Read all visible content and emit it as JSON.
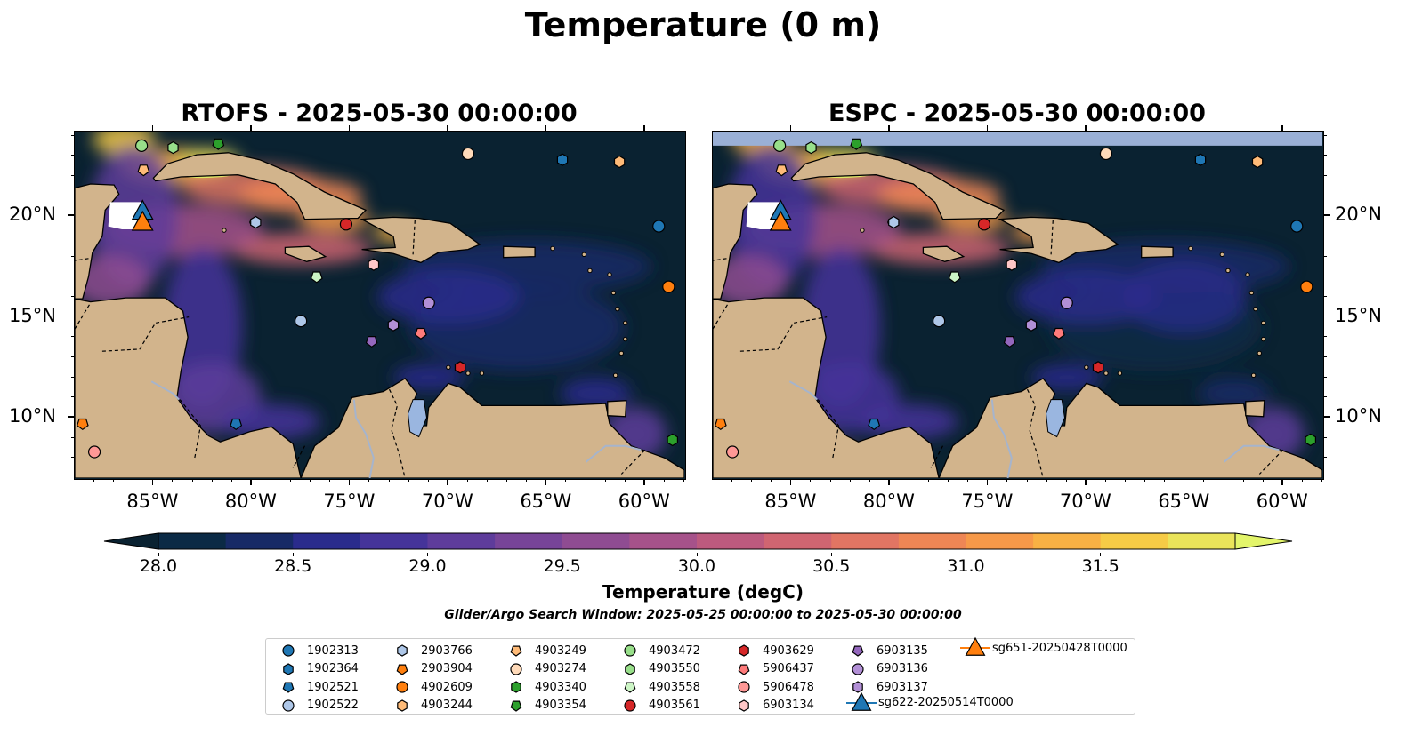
{
  "title": "Temperature (0 m)",
  "panels": [
    {
      "title": "RTOFS - 2025-05-30 00:00:00"
    },
    {
      "title": "ESPC - 2025-05-30 00:00:00"
    }
  ],
  "map_extent": {
    "lon": [
      -89,
      -58
    ],
    "lat": [
      7,
      24.2
    ]
  },
  "xticks": {
    "values": [
      -85,
      -80,
      -75,
      -70,
      -65,
      -60
    ],
    "labels": [
      "85°W",
      "80°W",
      "75°W",
      "70°W",
      "65°W",
      "60°W"
    ]
  },
  "yticks": {
    "values": [
      10,
      15,
      20
    ],
    "labels": [
      "10°N",
      "15°N",
      "20°N"
    ]
  },
  "colorbar": {
    "label": "Temperature (degC)",
    "min": 28.0,
    "max": 31.5,
    "tick_values": [
      28.0,
      28.5,
      29.0,
      29.5,
      30.0,
      30.5,
      31.0,
      31.5
    ],
    "tick_labels": [
      "28.0",
      "28.5",
      "29.0",
      "29.5",
      "30.0",
      "30.5",
      "31.0",
      "31.5"
    ],
    "colors": [
      "#0b2a45",
      "#172a66",
      "#2a2b8c",
      "#45349a",
      "#5e3c9b",
      "#774498",
      "#8f4c92",
      "#a6528a",
      "#bc5a7e",
      "#d06571",
      "#e17563",
      "#ee8655",
      "#f69949",
      "#f8b144",
      "#f6cb46",
      "#eae45a"
    ],
    "under_color": "#0a2231",
    "over_color": "#e3f56a"
  },
  "search_window": "Glider/Argo Search Window: 2025-05-25 00:00:00 to 2025-05-30 00:00:00",
  "colors": {
    "land": "#d2b48c",
    "ocean_deep": "#0a2231",
    "river": "#a6b4cc",
    "missing_band": "#9ab0d6"
  },
  "floats": [
    {
      "id": "1902313",
      "marker": "circle",
      "color": "#1f77b4",
      "lon": -59.3,
      "lat": 19.5
    },
    {
      "id": "1902364",
      "marker": "hexagon",
      "color": "#1f77b4",
      "lon": -64.2,
      "lat": 22.8
    },
    {
      "id": "1902521",
      "marker": "pentagon",
      "color": "#1f77b4",
      "lon": -80.8,
      "lat": 9.7
    },
    {
      "id": "1902522",
      "marker": "circle",
      "color": "#aec7e8",
      "lon": -77.5,
      "lat": 14.8
    },
    {
      "id": "2903766",
      "marker": "hexagon",
      "color": "#aec7e8",
      "lon": -79.8,
      "lat": 19.7
    },
    {
      "id": "2903904",
      "marker": "pentagon",
      "color": "#ff7f0e",
      "lon": -88.6,
      "lat": 9.7
    },
    {
      "id": "4902609",
      "marker": "circle",
      "color": "#ff7f0e",
      "lon": -58.8,
      "lat": 16.5
    },
    {
      "id": "4903244",
      "marker": "hexagon",
      "color": "#ffbb78",
      "lon": -61.3,
      "lat": 22.7
    },
    {
      "id": "4903249",
      "marker": "pentagon",
      "color": "#ffbb78",
      "lon": -85.5,
      "lat": 22.3
    },
    {
      "id": "4903274",
      "marker": "circle",
      "color": "#ffdab9",
      "lon": -69.0,
      "lat": 23.1
    },
    {
      "id": "4903340",
      "marker": "hexagon",
      "color": "#2ca02c",
      "lon": -58.6,
      "lat": 8.9
    },
    {
      "id": "4903354",
      "marker": "pentagon",
      "color": "#2ca02c",
      "lon": -81.7,
      "lat": 23.6
    },
    {
      "id": "4903472",
      "marker": "circle",
      "color": "#98df8a",
      "lon": -85.6,
      "lat": 23.5
    },
    {
      "id": "4903550",
      "marker": "hexagon",
      "color": "#98df8a",
      "lon": -84.0,
      "lat": 23.4
    },
    {
      "id": "4903558",
      "marker": "pentagon",
      "color": "#ccf5c5",
      "lon": -76.7,
      "lat": 17.0
    },
    {
      "id": "4903561",
      "marker": "circle",
      "color": "#d62728",
      "lon": -75.2,
      "lat": 19.6
    },
    {
      "id": "4903629",
      "marker": "hexagon",
      "color": "#d62728",
      "lon": -69.4,
      "lat": 12.5
    },
    {
      "id": "5906437",
      "marker": "pentagon",
      "color": "#ff7b7b",
      "lon": -71.4,
      "lat": 14.2
    },
    {
      "id": "5906478",
      "marker": "circle",
      "color": "#ff9896",
      "lon": -88.0,
      "lat": 8.3
    },
    {
      "id": "6903134",
      "marker": "hexagon",
      "color": "#ffc6c6",
      "lon": -73.8,
      "lat": 17.6
    },
    {
      "id": "6903135",
      "marker": "pentagon",
      "color": "#9467bd",
      "lon": -73.9,
      "lat": 13.8
    },
    {
      "id": "6903136",
      "marker": "circle",
      "color": "#b28fd6",
      "lon": -71.0,
      "lat": 15.7
    },
    {
      "id": "6903137",
      "marker": "hexagon",
      "color": "#b28fd6",
      "lon": -72.8,
      "lat": 14.6
    }
  ],
  "gliders": [
    {
      "id": "sg622-20250514T0000",
      "marker": "triangle",
      "color": "#1f77b4",
      "lon": -85.55,
      "lat": 20.25
    },
    {
      "id": "sg651-20250428T0000",
      "marker": "triangle",
      "color": "#ff7f0e",
      "lon": -85.55,
      "lat": 19.7
    }
  ]
}
